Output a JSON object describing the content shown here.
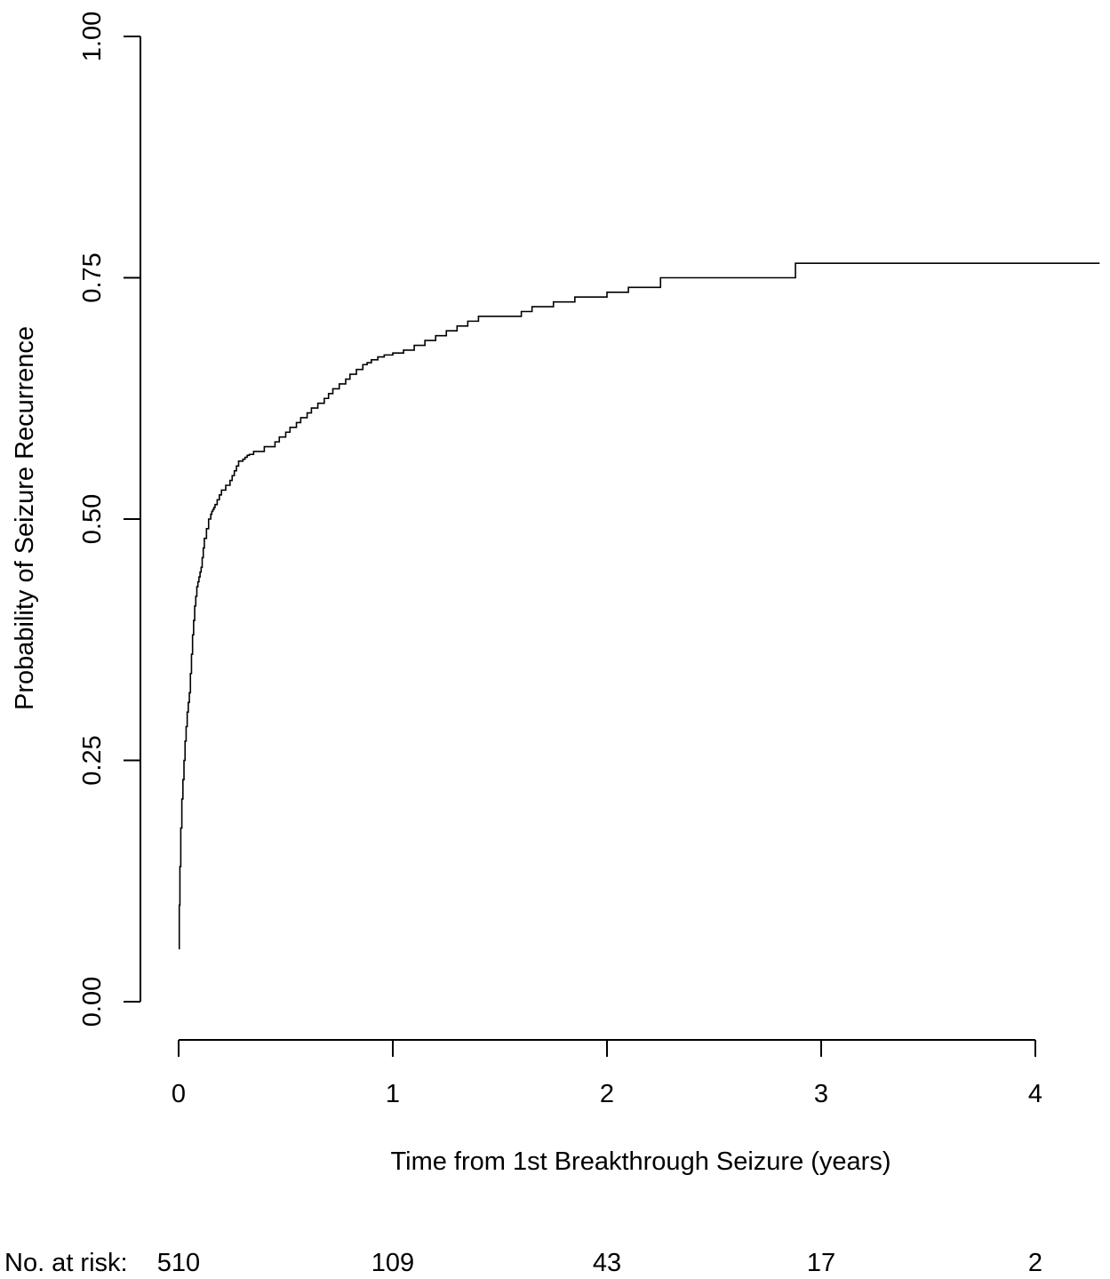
{
  "chart_data": {
    "type": "line",
    "step": true,
    "title": "",
    "xlabel": "Time from 1st Breakthrough Seizure (years)",
    "ylabel": "Probability of Seizure Recurrence",
    "xlim": [
      0,
      4
    ],
    "ylim": [
      0,
      1
    ],
    "x_ticks": [
      0,
      1,
      2,
      3,
      4
    ],
    "x_tick_labels": [
      "0",
      "1",
      "2",
      "3",
      "4"
    ],
    "y_ticks": [
      0,
      0.25,
      0.5,
      0.75,
      1
    ],
    "y_tick_labels": [
      "0.00",
      "0.25",
      "0.50",
      "0.75",
      "1.00"
    ],
    "grid": false,
    "legend": "none",
    "line_color": "#000000",
    "series": [
      {
        "x": [
          0.0,
          0.003,
          0.006,
          0.01,
          0.015,
          0.02,
          0.025,
          0.03,
          0.035,
          0.04,
          0.045,
          0.05,
          0.055,
          0.06,
          0.065,
          0.07,
          0.075,
          0.08,
          0.085,
          0.09,
          0.095,
          0.1,
          0.105,
          0.11,
          0.115,
          0.12,
          0.13,
          0.14,
          0.15,
          0.155,
          0.16,
          0.165,
          0.17,
          0.18,
          0.19,
          0.2,
          0.22,
          0.24,
          0.25,
          0.26,
          0.27,
          0.28,
          0.3,
          0.31,
          0.32,
          0.33,
          0.35,
          0.4,
          0.45,
          0.47,
          0.5,
          0.52,
          0.55,
          0.57,
          0.6,
          0.62,
          0.65,
          0.68,
          0.7,
          0.72,
          0.75,
          0.78,
          0.8,
          0.83,
          0.86,
          0.88,
          0.9,
          0.93,
          0.96,
          1.0,
          1.05,
          1.1,
          1.15,
          1.2,
          1.25,
          1.3,
          1.35,
          1.4,
          1.6,
          1.65,
          1.75,
          1.85,
          2.0,
          2.1,
          2.25,
          2.5,
          2.88,
          3.2,
          4.3
        ],
        "y": [
          0.055,
          0.1,
          0.14,
          0.18,
          0.21,
          0.23,
          0.25,
          0.27,
          0.285,
          0.3,
          0.31,
          0.32,
          0.34,
          0.36,
          0.38,
          0.395,
          0.41,
          0.42,
          0.43,
          0.435,
          0.44,
          0.445,
          0.45,
          0.46,
          0.47,
          0.48,
          0.49,
          0.5,
          0.505,
          0.508,
          0.51,
          0.512,
          0.515,
          0.52,
          0.525,
          0.53,
          0.535,
          0.54,
          0.545,
          0.55,
          0.555,
          0.56,
          0.562,
          0.564,
          0.566,
          0.567,
          0.57,
          0.575,
          0.58,
          0.585,
          0.59,
          0.595,
          0.6,
          0.605,
          0.61,
          0.615,
          0.62,
          0.625,
          0.63,
          0.635,
          0.64,
          0.645,
          0.65,
          0.655,
          0.66,
          0.662,
          0.665,
          0.668,
          0.67,
          0.672,
          0.675,
          0.68,
          0.685,
          0.69,
          0.695,
          0.7,
          0.705,
          0.71,
          0.715,
          0.72,
          0.725,
          0.73,
          0.735,
          0.74,
          0.75,
          0.75,
          0.765,
          0.765,
          0.765
        ]
      }
    ],
    "risk_table": {
      "label": "No. at risk:",
      "times": [
        0,
        1,
        2,
        3,
        4
      ],
      "counts": [
        "510",
        "109",
        "43",
        "17",
        "2"
      ]
    }
  }
}
